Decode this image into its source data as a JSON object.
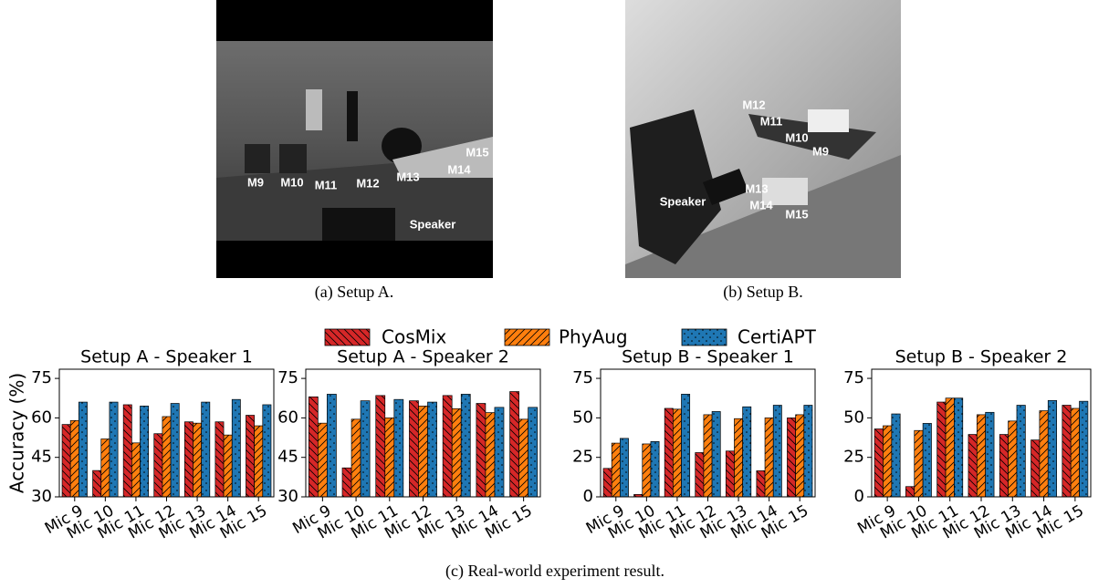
{
  "figures": [
    {
      "caption": "(a) Setup A.",
      "labels": [
        "M9",
        "M10",
        "M11",
        "M12",
        "M13",
        "M14",
        "M15",
        "Speaker"
      ]
    },
    {
      "caption": "(b) Setup B.",
      "labels": [
        "M12",
        "M11",
        "M10",
        "M9",
        "Speaker",
        "M13",
        "M14",
        "M15"
      ]
    }
  ],
  "chart_caption": "(c) Real-world experiment result.",
  "chart_data": [
    {
      "type": "bar",
      "title": "Setup A - Speaker 1",
      "ylabel": "Accuracy (%)",
      "categories": [
        "Mic 9",
        "Mic 10",
        "Mic 11",
        "Mic 12",
        "Mic 13",
        "Mic 14",
        "Mic 15"
      ],
      "ylim": [
        30,
        78.5
      ],
      "yticks": [
        30,
        45,
        60,
        75
      ],
      "series": [
        {
          "name": "CosMix",
          "color": "#d62728",
          "values": [
            57.5,
            40,
            65,
            54,
            58.5,
            58.5,
            61
          ]
        },
        {
          "name": "PhyAug",
          "color": "#ff7f0e",
          "values": [
            59,
            52,
            50.5,
            60.5,
            58,
            53.5,
            57
          ]
        },
        {
          "name": "CertiAPT",
          "color": "#1f77b4",
          "values": [
            66,
            66,
            64.5,
            65.5,
            66,
            67,
            65
          ]
        }
      ]
    },
    {
      "type": "bar",
      "title": "Setup A - Speaker 2",
      "categories": [
        "Mic 9",
        "Mic 10",
        "Mic 11",
        "Mic 12",
        "Mic 13",
        "Mic 14",
        "Mic 15"
      ],
      "ylim": [
        30,
        78.5
      ],
      "yticks": [
        30,
        45,
        60,
        75
      ],
      "series": [
        {
          "name": "CosMix",
          "color": "#d62728",
          "values": [
            68,
            41,
            68.5,
            66.5,
            68.5,
            65.5,
            70
          ]
        },
        {
          "name": "PhyAug",
          "color": "#ff7f0e",
          "values": [
            58,
            59.5,
            60,
            64.5,
            63.5,
            62,
            59.5
          ]
        },
        {
          "name": "CertiAPT",
          "color": "#1f77b4",
          "values": [
            69,
            66.5,
            67,
            66,
            69,
            64,
            64
          ]
        }
      ]
    },
    {
      "type": "bar",
      "title": "Setup B - Speaker 1",
      "categories": [
        "Mic 9",
        "Mic 10",
        "Mic 11",
        "Mic 12",
        "Mic 13",
        "Mic 14",
        "Mic 15"
      ],
      "ylim": [
        0,
        80.8
      ],
      "yticks": [
        0,
        25,
        50,
        75
      ],
      "series": [
        {
          "name": "CosMix",
          "color": "#d62728",
          "values": [
            18,
            1.5,
            56,
            28,
            29,
            16.5,
            50
          ]
        },
        {
          "name": "PhyAug",
          "color": "#ff7f0e",
          "values": [
            34,
            33.5,
            55.5,
            52,
            49.5,
            50,
            52
          ]
        },
        {
          "name": "CertiAPT",
          "color": "#1f77b4",
          "values": [
            37,
            35,
            65,
            54,
            57,
            58,
            58
          ]
        }
      ]
    },
    {
      "type": "bar",
      "title": "Setup B - Speaker 2",
      "categories": [
        "Mic 9",
        "Mic 10",
        "Mic 11",
        "Mic 12",
        "Mic 13",
        "Mic 14",
        "Mic 15"
      ],
      "ylim": [
        0,
        80.8
      ],
      "yticks": [
        0,
        25,
        50,
        75
      ],
      "series": [
        {
          "name": "CosMix",
          "color": "#d62728",
          "values": [
            43,
            6.5,
            60,
            39.5,
            39.5,
            36,
            58
          ]
        },
        {
          "name": "PhyAug",
          "color": "#ff7f0e",
          "values": [
            45,
            42,
            62.5,
            52,
            48,
            54.5,
            56
          ]
        },
        {
          "name": "CertiAPT",
          "color": "#1f77b4",
          "values": [
            52.5,
            46.5,
            62.5,
            53.5,
            58,
            61,
            60.5
          ]
        }
      ]
    }
  ]
}
